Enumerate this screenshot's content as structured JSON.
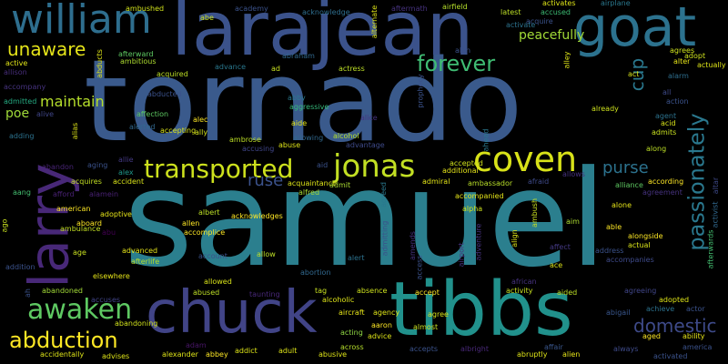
{
  "words": [
    {
      "text": "samuel",
      "color": "#2b7f8e"
    },
    {
      "text": "tornado",
      "color": "#3a5a8c"
    },
    {
      "text": "larajean",
      "color": "#3b528b"
    },
    {
      "text": "tibbs",
      "color": "#21918c"
    },
    {
      "text": "chuck",
      "color": "#414487"
    },
    {
      "text": "goat",
      "color": "#2c728e"
    },
    {
      "text": "william",
      "color": "#2e6e8e"
    },
    {
      "text": "larry",
      "color": "#482878"
    },
    {
      "text": "jonas",
      "color": "#c2df23"
    },
    {
      "text": "coven",
      "color": "#d8e219"
    },
    {
      "text": "transported",
      "color": "#cde11d"
    },
    {
      "text": "abduction",
      "color": "#fde725"
    },
    {
      "text": "awaken",
      "color": "#5ec962"
    },
    {
      "text": "forever",
      "color": "#3fbc73"
    },
    {
      "text": "unaware",
      "color": "#e5e419"
    },
    {
      "text": "passionately",
      "color": "#2a788e"
    },
    {
      "text": "domestic",
      "color": "#3e4a89"
    },
    {
      "text": "cup",
      "color": "#2a788e"
    },
    {
      "text": "purse",
      "color": "#2c728e"
    },
    {
      "text": "maintain",
      "color": "#b5de2b"
    },
    {
      "text": "ruse",
      "color": "#3b528b"
    },
    {
      "text": "poe",
      "color": "#a0da39"
    },
    {
      "text": "peacefully",
      "color": "#a2da37"
    },
    {
      "text": "abe",
      "color": "#c8e020"
    },
    {
      "text": "ambushed",
      "color": "#d0e11c"
    },
    {
      "text": "academy",
      "color": "#3b528b"
    },
    {
      "text": "acknowledge",
      "color": "#2e6e8e"
    },
    {
      "text": "aftermath",
      "color": "#46327e"
    },
    {
      "text": "airfield",
      "color": "#b5de2b"
    },
    {
      "text": "latest",
      "color": "#bddf26"
    },
    {
      "text": "accused",
      "color": "#3dbc74"
    },
    {
      "text": "activates",
      "color": "#dde318"
    },
    {
      "text": "airplane",
      "color": "#2a788e"
    },
    {
      "text": "afterward",
      "color": "#5ec962"
    },
    {
      "text": "ambitious",
      "color": "#addc30"
    },
    {
      "text": "abraham",
      "color": "#31688e"
    },
    {
      "text": "active",
      "color": "#e0e318"
    },
    {
      "text": "allison",
      "color": "#472d7b"
    },
    {
      "text": "accompany",
      "color": "#46337f"
    },
    {
      "text": "admitted",
      "color": "#25ab82"
    },
    {
      "text": "alive",
      "color": "#404688"
    },
    {
      "text": "adding",
      "color": "#2c728e"
    },
    {
      "text": "alias",
      "color": "#dde318"
    },
    {
      "text": "affection",
      "color": "#5ec962"
    },
    {
      "text": "alec",
      "color": "#fde725"
    },
    {
      "text": "aide",
      "color": "#e5e419"
    },
    {
      "text": "abby",
      "color": "#2a788e"
    },
    {
      "text": "aggressive",
      "color": "#35b779"
    },
    {
      "text": "alerted",
      "color": "#31688e"
    },
    {
      "text": "accepting",
      "color": "#d8e219"
    },
    {
      "text": "ally",
      "color": "#d0e11c"
    },
    {
      "text": "ambrose",
      "color": "#bddf26"
    },
    {
      "text": "allowing",
      "color": "#31688e"
    },
    {
      "text": "abuse",
      "color": "#dde318"
    },
    {
      "text": "advantage",
      "color": "#3e4a89"
    },
    {
      "text": "alcohol",
      "color": "#b5de2b"
    },
    {
      "text": "allie",
      "color": "#443983"
    },
    {
      "text": "alex",
      "color": "#1f988b"
    },
    {
      "text": "aging",
      "color": "#3b528b"
    },
    {
      "text": "abandon",
      "color": "#482475"
    },
    {
      "text": "acquires",
      "color": "#c2df23"
    },
    {
      "text": "accident",
      "color": "#d8e219"
    },
    {
      "text": "acquaintance",
      "color": "#dde318"
    },
    {
      "text": "alfred",
      "color": "#a8db34"
    },
    {
      "text": "admit",
      "color": "#aadc32"
    },
    {
      "text": "admiral",
      "color": "#e2e418"
    },
    {
      "text": "accepted",
      "color": "#d0e11c"
    },
    {
      "text": "additional",
      "color": "#e5e419"
    },
    {
      "text": "ambassador",
      "color": "#b8de29"
    },
    {
      "text": "accompanied",
      "color": "#e5e419"
    },
    {
      "text": "alpha",
      "color": "#cde11d"
    },
    {
      "text": "afraid",
      "color": "#3e4a89"
    },
    {
      "text": "allows",
      "color": "#46327e"
    },
    {
      "text": "alliance",
      "color": "#5ec962"
    },
    {
      "text": "according",
      "color": "#fde725"
    },
    {
      "text": "alone",
      "color": "#e5e419"
    },
    {
      "text": "agreement",
      "color": "#46327e"
    },
    {
      "text": "aang",
      "color": "#44bf70"
    },
    {
      "text": "afford",
      "color": "#482173"
    },
    {
      "text": "alamein",
      "color": "#482173"
    },
    {
      "text": "american",
      "color": "#fde725"
    },
    {
      "text": "adoptive",
      "color": "#e5e419"
    },
    {
      "text": "aboard",
      "color": "#fde725"
    },
    {
      "text": "ambulance",
      "color": "#c2df23"
    },
    {
      "text": "abu",
      "color": "#440154"
    },
    {
      "text": "age",
      "color": "#c8e020"
    },
    {
      "text": "advanced",
      "color": "#e5e419"
    },
    {
      "text": "afterlife",
      "color": "#b5de2b"
    },
    {
      "text": "albert",
      "color": "#bddf26"
    },
    {
      "text": "allen",
      "color": "#fde725"
    },
    {
      "text": "accomplice",
      "color": "#fde725"
    },
    {
      "text": "acknowledges",
      "color": "#fde725"
    },
    {
      "text": "account",
      "color": "#3b528b"
    },
    {
      "text": "allow",
      "color": "#bddf26"
    },
    {
      "text": "alert",
      "color": "#2c728e"
    },
    {
      "text": "aim",
      "color": "#addc30"
    },
    {
      "text": "able",
      "color": "#fde725"
    },
    {
      "text": "alongside",
      "color": "#fde725"
    },
    {
      "text": "actual",
      "color": "#d8e219"
    },
    {
      "text": "affect",
      "color": "#443983"
    },
    {
      "text": "address",
      "color": "#3b528b"
    },
    {
      "text": "accompanies",
      "color": "#3e4a89"
    },
    {
      "text": "addition",
      "color": "#3b528b"
    },
    {
      "text": "abandoned",
      "color": "#a2da37"
    },
    {
      "text": "elsewhere",
      "color": "#e5e419"
    },
    {
      "text": "accuses",
      "color": "#414487"
    },
    {
      "text": "abandoning",
      "color": "#d0e11c"
    },
    {
      "text": "allowed",
      "color": "#d8e219"
    },
    {
      "text": "abused",
      "color": "#bddf26"
    },
    {
      "text": "taunting",
      "color": "#482878"
    },
    {
      "text": "abortion",
      "color": "#31688e"
    },
    {
      "text": "tag",
      "color": "#c8e020"
    },
    {
      "text": "absence",
      "color": "#cde11d"
    },
    {
      "text": "accept",
      "color": "#fde725"
    },
    {
      "text": "activity",
      "color": "#c8e020"
    },
    {
      "text": "aided",
      "color": "#bddf26"
    },
    {
      "text": "agreeing",
      "color": "#404688"
    },
    {
      "text": "adopted",
      "color": "#dde318"
    },
    {
      "text": "achieve",
      "color": "#2c728e"
    },
    {
      "text": "actor",
      "color": "#3b528b"
    },
    {
      "text": "abigail",
      "color": "#39568c"
    },
    {
      "text": "alcoholic",
      "color": "#dde318"
    },
    {
      "text": "aircraft",
      "color": "#e5e419"
    },
    {
      "text": "agency",
      "color": "#dde318"
    },
    {
      "text": "agree",
      "color": "#d8e219"
    },
    {
      "text": "aaron",
      "color": "#fde725"
    },
    {
      "text": "acting",
      "color": "#8fd744"
    },
    {
      "text": "advice",
      "color": "#dde318"
    },
    {
      "text": "almost",
      "color": "#c8e020"
    },
    {
      "text": "adam",
      "color": "#481668"
    },
    {
      "text": "alexander",
      "color": "#dde318"
    },
    {
      "text": "addict",
      "color": "#dde318"
    },
    {
      "text": "adult",
      "color": "#dde318"
    },
    {
      "text": "abusive",
      "color": "#dde318"
    },
    {
      "text": "across",
      "color": "#b5de2b"
    },
    {
      "text": "accepts",
      "color": "#3b528b"
    },
    {
      "text": "albright",
      "color": "#482878"
    },
    {
      "text": "abruptly",
      "color": "#dde318"
    },
    {
      "text": "affair",
      "color": "#39568c"
    },
    {
      "text": "alien",
      "color": "#e5e419"
    },
    {
      "text": "always",
      "color": "#3e4a89"
    },
    {
      "text": "aged",
      "color": "#fde725"
    },
    {
      "text": "ability",
      "color": "#e5e419"
    },
    {
      "text": "america",
      "color": "#3b528b"
    },
    {
      "text": "activated",
      "color": "#3b528b"
    },
    {
      "text": "accidentally",
      "color": "#dde318"
    },
    {
      "text": "advises",
      "color": "#dde318"
    },
    {
      "text": "abbey",
      "color": "#fde725"
    },
    {
      "text": "all",
      "color": "#3e4a89"
    },
    {
      "text": "action",
      "color": "#3b528b"
    },
    {
      "text": "agent",
      "color": "#2c728e"
    },
    {
      "text": "acid",
      "color": "#d8e219"
    },
    {
      "text": "admits",
      "color": "#c8e020"
    },
    {
      "text": "already",
      "color": "#cde11d"
    },
    {
      "text": "along",
      "color": "#bddf26"
    },
    {
      "text": "act",
      "color": "#d8e219"
    },
    {
      "text": "alarm",
      "color": "#2e6e8e"
    },
    {
      "text": "agrees",
      "color": "#cde11d"
    },
    {
      "text": "alter",
      "color": "#e5e419"
    },
    {
      "text": "adopt",
      "color": "#cde11d"
    },
    {
      "text": "actually",
      "color": "#dde318"
    },
    {
      "text": "alley",
      "color": "#dde318"
    },
    {
      "text": "acquire",
      "color": "#3b528b"
    },
    {
      "text": "activate",
      "color": "#2c728e"
    },
    {
      "text": "alan",
      "color": "#3b528b"
    },
    {
      "text": "alternate",
      "color": "#dde318"
    },
    {
      "text": "prophecy",
      "color": "#3b528b"
    },
    {
      "text": "alice",
      "color": "#46327e"
    },
    {
      "text": "ad",
      "color": "#c8e020"
    },
    {
      "text": "actress",
      "color": "#bddf26"
    },
    {
      "text": "acquired",
      "color": "#bddf26"
    },
    {
      "text": "advance",
      "color": "#2a788e"
    },
    {
      "text": "abducts",
      "color": "#dde318"
    },
    {
      "text": "abducted",
      "color": "#3b528b"
    },
    {
      "text": "ahead",
      "color": "#2a788e"
    },
    {
      "text": "agreed",
      "color": "#2a788e"
    },
    {
      "text": "admitting",
      "color": "#3b528b"
    },
    {
      "text": "access",
      "color": "#3b528b"
    },
    {
      "text": "amends",
      "color": "#46327e"
    },
    {
      "text": "adventure",
      "color": "#46327e"
    },
    {
      "text": "airport",
      "color": "#46327e"
    },
    {
      "text": "align",
      "color": "#dde318"
    },
    {
      "text": "ambush",
      "color": "#c8e020"
    },
    {
      "text": "ace",
      "color": "#dde318"
    },
    {
      "text": "african",
      "color": "#46327e"
    },
    {
      "text": "activist",
      "color": "#31688e"
    },
    {
      "text": "altar",
      "color": "#3e4a89"
    },
    {
      "text": "accusing",
      "color": "#404688"
    },
    {
      "text": "aid",
      "color": "#3b528b"
    },
    {
      "text": "ah",
      "color": "#3b528b"
    },
    {
      "text": "ago",
      "color": "#c8e020"
    },
    {
      "text": "afterwards",
      "color": "#44bf70"
    },
    {
      "text": "agent",
      "color": "#3e4a89"
    }
  ]
}
